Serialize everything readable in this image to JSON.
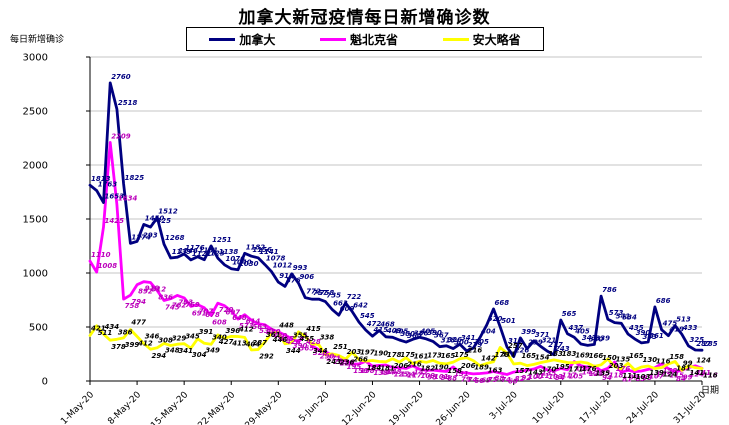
{
  "chart_data": {
    "type": "line",
    "title": "加拿大新冠疫情每日新增确诊数",
    "xlabel": "日期",
    "ylabel": "每日新增确诊",
    "ylim": [
      0,
      3000
    ],
    "yticks": [
      0,
      500,
      1000,
      1500,
      2000,
      2500,
      3000
    ],
    "grid": true,
    "legend_position": "top",
    "x_start": "1-May-20",
    "x_end": "31-Jul-20",
    "x_frequency": "daily",
    "x_tick_labels": [
      "1-May-20",
      "8-May-20",
      "15-May-20",
      "22-May-20",
      "29-May-20",
      "5-Jun-20",
      "12-Jun-20",
      "19-Jun-20",
      "26-Jun-20",
      "3-Jul-20",
      "10-Jul-20",
      "17-Jul-20",
      "24-Jul-20",
      "31-Jul-20"
    ],
    "series": [
      {
        "name": "加拿大",
        "key": "canada",
        "color": "#000080",
        "label_color": "#000080",
        "values": [
          1813,
          1763,
          1653,
          2760,
          2518,
          1825,
          1274,
          1293,
          1450,
          1425,
          1512,
          1268,
          1139,
          1146,
          1176,
          1121,
          1151,
          1123,
          1251,
          1138,
          1076,
          1040,
          1030,
          1182,
          1156,
          1141,
          1078,
          1012,
          916,
          876,
          993,
          906,
          772,
          757,
          758,
          735,
          663,
          609,
          722,
          642,
          545,
          472,
          415,
          468,
          409,
          405,
          380,
          360,
          386,
          405,
          390,
          367,
          318,
          326,
          300,
          341,
          279,
          305,
          404,
          520,
          668,
          501,
          316,
          226,
          399,
          299,
          371,
          321,
          277,
          243,
          565,
          437,
          405,
          343,
          330,
          339,
          786,
          573,
          541,
          534,
          435,
          390,
          353,
          361,
          686,
          475,
          419,
          513,
          433,
          325,
          287,
          285
        ]
      },
      {
        "name": "魁北克省",
        "key": "quebec",
        "color": "#FF00FF",
        "label_color": "#BB00BB",
        "values": [
          1110,
          1008,
          1425,
          2209,
          1634,
          758,
          794,
          892,
          919,
          912,
          836,
          745,
          762,
          793,
          769,
          691,
          707,
          678,
          608,
          720,
          697,
          648,
          573,
          614,
          563,
          530,
          520,
          480,
          455,
          426,
          390,
          365,
          428,
          326,
          290,
          271,
          239,
          228,
          195,
          156,
          158,
          182,
          138,
          144,
          148,
          125,
          124,
          117,
          142,
          109,
          98,
          101,
          94,
          88,
          131,
          79,
          74,
          66,
          69,
          75,
          88,
          74,
          60,
          82,
          92,
          100,
          111,
          135,
          103,
          94,
          117,
          105,
          180,
          142,
          128,
          139,
          94,
          118,
          176,
          81,
          99,
          85,
          93,
          107,
          123,
          158,
          115,
          84,
          99,
          124,
          141,
          118
        ]
      },
      {
        "name": "安大略省",
        "key": "ontario",
        "color": "#FFFF00",
        "label_color": "#000000",
        "values": [
          421,
          511,
          434,
          378,
          386,
          399,
          477,
          412,
          346,
          294,
          308,
          348,
          329,
          341,
          345,
          304,
          391,
          349,
          340,
          427,
          396,
          413,
          412,
          404,
          287,
          292,
          361,
          446,
          448,
          344,
          355,
          455,
          415,
          344,
          338,
          243,
          251,
          236,
          203,
          266,
          197,
          184,
          190,
          181,
          178,
          206,
          175,
          216,
          161,
          182,
          173,
          190,
          165,
          158,
          175,
          206,
          216,
          189,
          142,
          163,
          178,
          311,
          257,
          157,
          165,
          143,
          154,
          170,
          183,
          195,
          183,
          171,
          169,
          176,
          166,
          135,
          150,
          203,
          135,
          111,
          165,
          103,
          130,
          139,
          116,
          124,
          158,
          181,
          99,
          141,
          124,
          116
        ]
      }
    ]
  }
}
